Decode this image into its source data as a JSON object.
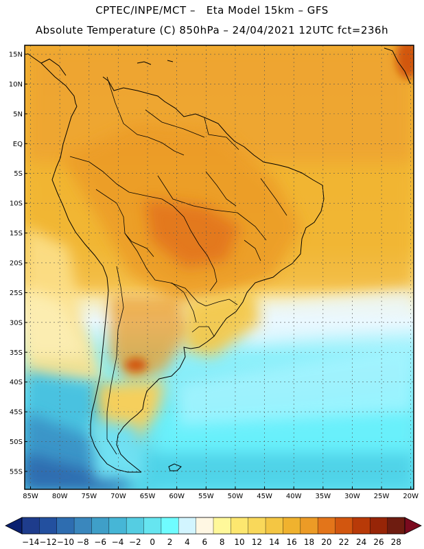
{
  "header": {
    "line1": "CPTEC/INPE/MCT –   Eta Model 15km – GFS",
    "line2": "Absolute Temperature (C) 850hPa – 24/04/2021 12UTC fct=236h"
  },
  "map": {
    "lat_ticks": [
      "15N",
      "10N",
      "5N",
      "EQ",
      "5S",
      "10S",
      "15S",
      "20S",
      "25S",
      "30S",
      "35S",
      "40S",
      "45S",
      "50S",
      "55S"
    ],
    "lon_ticks": [
      "85W",
      "80W",
      "75W",
      "70W",
      "65W",
      "60W",
      "55W",
      "50W",
      "45W",
      "40W",
      "35W",
      "30W",
      "25W",
      "20W"
    ],
    "lat_values": [
      15,
      10,
      5,
      0,
      -5,
      -10,
      -15,
      -20,
      -25,
      -30,
      -35,
      -40,
      -45,
      -50,
      -55
    ],
    "lon_values": [
      -85,
      -80,
      -75,
      -70,
      -65,
      -60,
      -55,
      -50,
      -45,
      -40,
      -35,
      -30,
      -25,
      -20
    ],
    "extent": {
      "lon_min": -86,
      "lon_max": -19.5,
      "lat_min": -58,
      "lat_max": 16.5
    }
  },
  "colorbar": {
    "labels": [
      "-14",
      "-12",
      "-10",
      "-8",
      "-6",
      "-4",
      "-2",
      "0",
      "2",
      "4",
      "6",
      "8",
      "10",
      "12",
      "14",
      "16",
      "18",
      "20",
      "22",
      "24",
      "26",
      "28"
    ],
    "colors": [
      "#1e3c8c",
      "#23509f",
      "#2e6db0",
      "#3a87bd",
      "#3f9fc8",
      "#46b6d6",
      "#55cde2",
      "#66e5f0",
      "#6ffcff",
      "#d2f5ff",
      "#fff7e3",
      "#fff89a",
      "#fde76f",
      "#f9d85a",
      "#f4c643",
      "#f0b22e",
      "#ec9b26",
      "#e3751a",
      "#d2560f",
      "#b83a08",
      "#972507",
      "#6e1c10"
    ],
    "under_color": "#0a2070",
    "over_color": "#7a0a1e"
  }
}
